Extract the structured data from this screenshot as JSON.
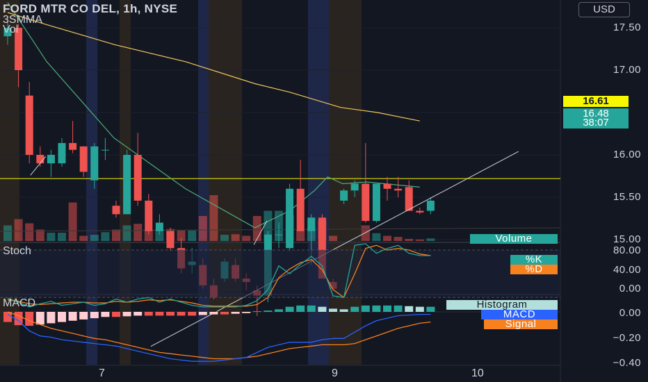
{
  "header": {
    "title": "FORD MTR CO DEL, 1h, NYSE",
    "line2": "3SMMA",
    "line3": "Vol",
    "currency": "USD"
  },
  "price_tags": {
    "level": "16.61",
    "last": "16.48",
    "countdown": "38:07"
  },
  "pane_labels": {
    "stoch": "Stoch",
    "macd": "MACD"
  },
  "badges": {
    "volume": "Volume",
    "k": "%K",
    "d": "%D",
    "histogram": "Histogram",
    "macd": "MACD",
    "signal": "Signal"
  },
  "colors": {
    "up": "#26a69a",
    "down": "#ef5350",
    "ma": "#f0c75e",
    "ma_green": "#4caf7a",
    "level_line": "#f7f700",
    "k_line": "#26a69a",
    "d_line": "#f7801f",
    "macd_line": "#2962ff",
    "signal_line": "#f7801f"
  },
  "chart_data": [
    {
      "type": "candlestick",
      "title": "FORD MTR CO DEL, 1h, NYSE",
      "y_ticks": [
        "17.50",
        "17.00",
        "16.50",
        "16.00",
        "15.50",
        "15.00"
      ],
      "ylim": [
        14.99,
        17.76
      ],
      "x_ticks": [
        "7",
        "9",
        "10"
      ],
      "candles": [
        [
          17.45,
          17.55,
          17.4,
          17.5
        ],
        [
          17.5,
          17.52,
          17.15,
          17.25
        ],
        [
          17.1,
          17.18,
          16.7,
          16.75
        ],
        [
          16.75,
          16.8,
          16.68,
          16.7
        ],
        [
          16.7,
          16.78,
          16.62,
          16.75
        ],
        [
          16.7,
          16.85,
          16.68,
          16.82
        ],
        [
          16.82,
          16.95,
          16.76,
          16.78
        ],
        [
          16.8,
          16.8,
          16.62,
          16.65
        ],
        [
          16.6,
          16.82,
          16.55,
          16.8
        ],
        [
          16.78,
          16.85,
          16.72,
          16.78
        ],
        [
          16.45,
          16.48,
          16.38,
          16.4
        ],
        [
          16.4,
          16.78,
          16.4,
          16.75
        ],
        [
          16.75,
          16.88,
          16.45,
          16.48
        ],
        [
          16.48,
          16.52,
          16.28,
          16.3
        ],
        [
          16.3,
          16.4,
          16.28,
          16.35
        ],
        [
          16.3,
          16.32,
          16.18,
          16.2
        ],
        [
          16.2,
          16.26,
          16.05,
          16.08
        ],
        [
          16.1,
          16.2,
          16.05,
          16.12
        ],
        [
          16.1,
          16.14,
          15.96,
          15.98
        ],
        [
          15.98,
          16.02,
          15.9,
          15.91
        ],
        [
          16.02,
          16.14,
          16.0,
          16.12
        ],
        [
          16.1,
          16.14,
          16.0,
          16.02
        ],
        [
          16.02,
          16.05,
          15.95,
          16.0
        ],
        [
          15.95,
          15.98,
          15.8,
          15.92
        ],
        [
          15.92,
          16.3,
          15.88,
          16.28
        ],
        [
          16.28,
          16.35,
          16.2,
          16.28
        ],
        [
          16.2,
          16.58,
          16.18,
          16.55
        ],
        [
          16.55,
          16.72,
          16.3,
          16.3
        ],
        [
          16.3,
          16.4,
          16.1,
          16.38
        ],
        [
          16.38,
          16.4,
          16.02,
          16.02
        ],
        [
          16.0,
          16.02,
          15.95,
          15.96
        ],
        [
          16.48,
          16.55,
          16.46,
          16.54
        ],
        [
          16.54,
          16.6,
          16.5,
          16.58
        ],
        [
          16.58,
          16.82,
          16.35,
          16.36
        ],
        [
          16.36,
          16.58,
          16.35,
          16.58
        ],
        [
          16.58,
          16.62,
          16.48,
          16.55
        ],
        [
          16.55,
          16.62,
          16.5,
          16.54
        ],
        [
          16.56,
          16.6,
          16.42,
          16.42
        ],
        [
          16.42,
          16.44,
          16.4,
          16.41
        ],
        [
          16.42,
          16.5,
          16.4,
          16.48
        ]
      ],
      "sma_yellow": [
        [
          0,
          17.59
        ],
        [
          3.5,
          17.52
        ],
        [
          9.9,
          17.4
        ],
        [
          16.4,
          17.3
        ],
        [
          22.8,
          17.17
        ],
        [
          26.0,
          17.12
        ],
        [
          30.7,
          17.03
        ],
        [
          34.1,
          17.0
        ],
        [
          38.0,
          16.95
        ]
      ],
      "sma_green": [
        [
          0,
          17.65
        ],
        [
          3.6,
          17.3
        ],
        [
          9.8,
          16.85
        ],
        [
          16.4,
          16.55
        ],
        [
          22.8,
          16.32
        ],
        [
          26.0,
          16.42
        ],
        [
          28.3,
          16.54
        ],
        [
          29.5,
          16.62
        ],
        [
          30.9,
          16.58
        ],
        [
          33.1,
          16.59
        ],
        [
          38.0,
          16.56
        ]
      ],
      "trendlines": [
        [
          [
            13.2,
            15.62
          ],
          [
            47.1,
            16.77
          ]
        ],
        [
          [
            2.1,
            16.63
          ],
          [
            3.5,
            16.74
          ]
        ],
        [
          [
            22.7,
            16.22
          ],
          [
            23.9,
            16.36
          ]
        ]
      ],
      "horizontal_level": 16.61,
      "last_price": 16.48
    },
    {
      "type": "bar",
      "title": "Vol",
      "values": [
        0.3,
        0.42,
        0.34,
        0.22,
        0.16,
        0.16,
        0.74,
        0.1,
        0.12,
        0.17,
        0.22,
        0.3,
        0.33,
        0.22,
        0.23,
        0.23,
        0.2,
        0.2,
        0.48,
        0.88,
        0.12,
        0.13,
        0.1,
        0.48,
        0.58,
        0.58,
        0.5,
        0.2,
        0.26,
        0.4,
        0.1,
        0.0,
        0.0,
        0.3,
        0.15,
        0.1,
        0.08,
        0.04,
        0.03,
        0.05
      ]
    },
    {
      "type": "line",
      "title": "Stoch",
      "y_ticks": [
        "80.00",
        "40.00",
        "0.00"
      ],
      "ylim": [
        -5,
        95
      ],
      "series": [
        {
          "name": "%K",
          "values": [
            19,
            14,
            8,
            12,
            15,
            10,
            12,
            14,
            10,
            12,
            18,
            14,
            18,
            20,
            14,
            18,
            14,
            10,
            8,
            8,
            8,
            8,
            10,
            16,
            30,
            60,
            50,
            62,
            72,
            60,
            22,
            20,
            86,
            88,
            76,
            82,
            86,
            76,
            73,
            73
          ]
        },
        {
          "name": "%D",
          "values": [
            17,
            15,
            12,
            11,
            12,
            13,
            14,
            14,
            13,
            13,
            15,
            14,
            15,
            17,
            16,
            17,
            15,
            13,
            10,
            9,
            9,
            9,
            9,
            11,
            20,
            45,
            56,
            64,
            68,
            55,
            30,
            20,
            50,
            82,
            86,
            80,
            82,
            80,
            75,
            73
          ]
        }
      ]
    },
    {
      "type": "bar",
      "title": "MACD",
      "y_ticks": [
        "0.00",
        "−0.20",
        "−0.40"
      ],
      "ylim": [
        -0.44,
        0.08
      ],
      "histogram": [
        -0.08,
        -0.105,
        -0.11,
        -0.1,
        -0.09,
        -0.08,
        -0.07,
        -0.06,
        -0.05,
        -0.04,
        -0.04,
        -0.035,
        -0.03,
        -0.03,
        -0.03,
        -0.03,
        -0.03,
        -0.03,
        -0.025,
        -0.02,
        -0.02,
        -0.015,
        -0.01,
        0.005,
        0.01,
        0.02,
        0.04,
        0.05,
        0.05,
        0.04,
        0.025,
        0.02,
        0.04,
        0.05,
        0.05,
        0.05,
        0.05,
        0.045,
        0.04,
        0.04
      ],
      "series": [
        {
          "name": "MACD",
          "values": [
            -0.02,
            -0.07,
            -0.15,
            -0.19,
            -0.2,
            -0.22,
            -0.23,
            -0.24,
            -0.25,
            -0.26,
            -0.27,
            -0.29,
            -0.31,
            -0.33,
            -0.35,
            -0.37,
            -0.38,
            -0.39,
            -0.39,
            -0.39,
            -0.38,
            -0.37,
            -0.36,
            -0.32,
            -0.28,
            -0.26,
            -0.24,
            -0.24,
            -0.24,
            -0.22,
            -0.21,
            -0.21,
            -0.16,
            -0.11,
            -0.07,
            -0.05,
            -0.03,
            -0.025,
            -0.02,
            -0.02
          ]
        },
        {
          "name": "Signal",
          "values": [
            0.0,
            -0.03,
            -0.07,
            -0.1,
            -0.13,
            -0.15,
            -0.17,
            -0.19,
            -0.21,
            -0.22,
            -0.24,
            -0.26,
            -0.28,
            -0.3,
            -0.32,
            -0.33,
            -0.34,
            -0.35,
            -0.36,
            -0.37,
            -0.37,
            -0.37,
            -0.36,
            -0.35,
            -0.33,
            -0.31,
            -0.29,
            -0.28,
            -0.27,
            -0.26,
            -0.26,
            -0.26,
            -0.25,
            -0.22,
            -0.19,
            -0.16,
            -0.13,
            -0.11,
            -0.09,
            -0.08
          ]
        }
      ]
    }
  ]
}
